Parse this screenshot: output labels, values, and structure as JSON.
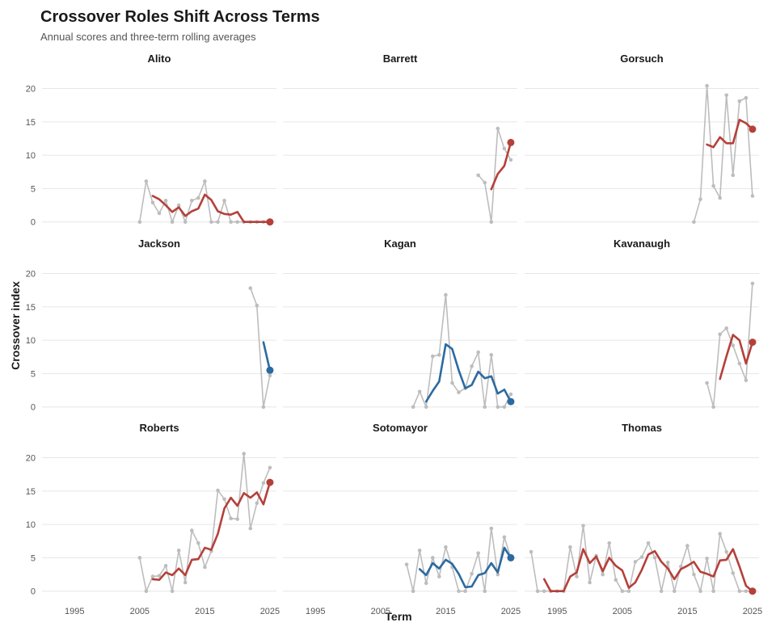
{
  "chart_data": {
    "type": "line",
    "title": "Crossover Roles Shift Across Terms",
    "subtitle": "Annual scores and three-term rolling averages",
    "xlabel": "Term",
    "ylabel": "Crossover index",
    "xlim": [
      1990,
      2026
    ],
    "ylim": [
      -1,
      22
    ],
    "x_ticks": [
      1995,
      2005,
      2015,
      2025
    ],
    "y_ticks": [
      0,
      5,
      10,
      15,
      20
    ],
    "grid": true,
    "colors": {
      "annual": "#bdbdbd",
      "rising": "#b5403a",
      "falling": "#2b6aa0"
    },
    "facets": [
      {
        "name": "Alito",
        "trend": "rising",
        "annual": {
          "x": [
            2005,
            2006,
            2007,
            2008,
            2009,
            2010,
            2011,
            2012,
            2013,
            2014,
            2015,
            2016,
            2017,
            2018,
            2019,
            2020,
            2021,
            2022,
            2023,
            2024,
            2025
          ],
          "y": [
            0,
            6.1,
            2.9,
            1.3,
            3.2,
            0,
            2.5,
            0,
            3.2,
            3.6,
            6.1,
            0,
            0,
            3.2,
            0,
            0,
            0,
            0,
            0,
            0,
            0
          ]
        },
        "rolling": {
          "x": [
            2007,
            2008,
            2009,
            2010,
            2011,
            2012,
            2013,
            2014,
            2015,
            2016,
            2017,
            2018,
            2019,
            2020,
            2021,
            2022,
            2023,
            2024,
            2025
          ],
          "y": [
            3.9,
            3.4,
            2.5,
            1.5,
            2.2,
            0.9,
            1.6,
            2.0,
            4.1,
            3.3,
            1.6,
            1.2,
            1.1,
            1.5,
            0,
            0,
            0,
            0,
            0
          ]
        }
      },
      {
        "name": "Barrett",
        "trend": "rising",
        "annual": {
          "x": [
            2020,
            2021,
            2022,
            2023,
            2024,
            2025
          ],
          "y": [
            7.0,
            5.9,
            0,
            14.0,
            11.0,
            9.3
          ]
        },
        "rolling": {
          "x": [
            2022,
            2023,
            2024,
            2025
          ],
          "y": [
            4.9,
            7.2,
            8.4,
            11.9
          ]
        }
      },
      {
        "name": "Gorsuch",
        "trend": "rising",
        "annual": {
          "x": [
            2016,
            2017,
            2018,
            2019,
            2020,
            2021,
            2022,
            2023,
            2024,
            2025
          ],
          "y": [
            0,
            3.4,
            20.4,
            5.4,
            3.6,
            19.0,
            7.0,
            18.1,
            18.6,
            3.9
          ]
        },
        "rolling": {
          "x": [
            2018,
            2019,
            2020,
            2021,
            2022,
            2023,
            2024,
            2025
          ],
          "y": [
            11.6,
            11.2,
            12.7,
            11.8,
            11.8,
            15.3,
            14.8,
            13.9
          ]
        }
      },
      {
        "name": "Jackson",
        "trend": "falling",
        "annual": {
          "x": [
            2022,
            2023,
            2024,
            2025
          ],
          "y": [
            17.8,
            15.2,
            0,
            4.7
          ]
        },
        "rolling": {
          "x": [
            2024,
            2025
          ],
          "y": [
            9.7,
            5.5
          ]
        }
      },
      {
        "name": "Kagan",
        "trend": "falling",
        "annual": {
          "x": [
            2010,
            2011,
            2012,
            2013,
            2014,
            2015,
            2016,
            2017,
            2018,
            2019,
            2020,
            2021,
            2022,
            2023,
            2024,
            2025
          ],
          "y": [
            0,
            2.3,
            0,
            7.6,
            7.8,
            16.8,
            3.6,
            2.2,
            2.8,
            6.1,
            8.2,
            0,
            7.8,
            0,
            0,
            1.9
          ]
        },
        "rolling": {
          "x": [
            2012,
            2013,
            2014,
            2015,
            2016,
            2017,
            2018,
            2019,
            2020,
            2021,
            2022,
            2023,
            2024,
            2025
          ],
          "y": [
            0.8,
            2.4,
            3.8,
            9.4,
            8.7,
            5.5,
            2.8,
            3.3,
            5.3,
            4.3,
            4.6,
            2.0,
            2.6,
            0.8
          ]
        }
      },
      {
        "name": "Kavanaugh",
        "trend": "rising",
        "annual": {
          "x": [
            2018,
            2019,
            2020,
            2021,
            2022,
            2023,
            2024,
            2025
          ],
          "y": [
            3.6,
            0,
            10.9,
            11.8,
            9.2,
            6.5,
            4.0,
            18.5
          ]
        },
        "rolling": {
          "x": [
            2020,
            2021,
            2022,
            2023,
            2024,
            2025
          ],
          "y": [
            4.2,
            7.6,
            10.8,
            10.0,
            6.5,
            9.7
          ]
        }
      },
      {
        "name": "Roberts",
        "trend": "rising",
        "annual": {
          "x": [
            2005,
            2006,
            2007,
            2008,
            2009,
            2010,
            2011,
            2012,
            2013,
            2014,
            2015,
            2016,
            2017,
            2018,
            2019,
            2020,
            2021,
            2022,
            2023,
            2024,
            2025
          ],
          "y": [
            5.0,
            0,
            2.2,
            2.3,
            3.8,
            0,
            6.1,
            1.3,
            9.1,
            7.2,
            3.6,
            6.0,
            15.1,
            13.8,
            10.9,
            10.8,
            20.6,
            9.4,
            13.2,
            16.2,
            18.5
          ]
        },
        "rolling": {
          "x": [
            2007,
            2008,
            2009,
            2010,
            2011,
            2012,
            2013,
            2014,
            2015,
            2016,
            2017,
            2018,
            2019,
            2020,
            2021,
            2022,
            2023,
            2024,
            2025
          ],
          "y": [
            1.8,
            1.7,
            2.8,
            2.4,
            3.4,
            2.4,
            4.7,
            4.8,
            6.5,
            6.2,
            8.6,
            12.4,
            14.0,
            12.8,
            14.7,
            14.0,
            14.8,
            13.0,
            16.3
          ]
        }
      },
      {
        "name": "Sotomayor",
        "trend": "falling",
        "annual": {
          "x": [
            2009,
            2010,
            2011,
            2012,
            2013,
            2014,
            2015,
            2016,
            2017,
            2018,
            2019,
            2020,
            2021,
            2022,
            2023,
            2024,
            2025
          ],
          "y": [
            4.0,
            0,
            6.1,
            1.2,
            5.0,
            2.2,
            6.6,
            3.6,
            0,
            0,
            2.6,
            5.7,
            0,
            9.4,
            2.5,
            8.1,
            5.0
          ]
        },
        "rolling": {
          "x": [
            2011,
            2012,
            2013,
            2014,
            2015,
            2016,
            2017,
            2018,
            2019,
            2020,
            2021,
            2022,
            2023,
            2024,
            2025
          ],
          "y": [
            3.3,
            2.4,
            4.2,
            3.4,
            4.7,
            4.1,
            2.6,
            0.6,
            0.7,
            2.4,
            2.7,
            4.2,
            2.8,
            6.5,
            5.0
          ]
        }
      },
      {
        "name": "Thomas",
        "trend": "rising",
        "annual": {
          "x": [
            1991,
            1992,
            1993,
            1994,
            1995,
            1996,
            1997,
            1998,
            1999,
            2000,
            2001,
            2002,
            2003,
            2004,
            2005,
            2006,
            2007,
            2008,
            2009,
            2010,
            2011,
            2012,
            2013,
            2014,
            2015,
            2016,
            2017,
            2018,
            2019,
            2020,
            2021,
            2022,
            2023,
            2024,
            2025
          ],
          "y": [
            5.9,
            0,
            0,
            0,
            0,
            0,
            6.6,
            2.2,
            9.8,
            1.3,
            5.3,
            2.5,
            7.2,
            1.7,
            0,
            0,
            4.4,
            5.1,
            7.2,
            5.0,
            0,
            4.3,
            0,
            3.7,
            6.8,
            2.5,
            0,
            4.9,
            0,
            8.6,
            5.9,
            2.7,
            0,
            0,
            0
          ]
        },
        "rolling": {
          "x": [
            1993,
            1994,
            1995,
            1996,
            1997,
            1998,
            1999,
            2000,
            2001,
            2002,
            2003,
            2004,
            2005,
            2006,
            2007,
            2008,
            2009,
            2010,
            2011,
            2012,
            2013,
            2014,
            2015,
            2016,
            2017,
            2018,
            2019,
            2020,
            2021,
            2022,
            2023,
            2024,
            2025
          ],
          "y": [
            1.8,
            0,
            0,
            0,
            2.2,
            2.8,
            6.3,
            4.2,
            5.2,
            3.0,
            5.0,
            3.8,
            3.1,
            0.5,
            1.3,
            3.2,
            5.5,
            6.0,
            4.4,
            3.4,
            1.8,
            3.3,
            3.8,
            4.4,
            2.9,
            2.6,
            2.2,
            4.6,
            4.7,
            6.3,
            3.7,
            0.8,
            0
          ]
        }
      }
    ]
  }
}
